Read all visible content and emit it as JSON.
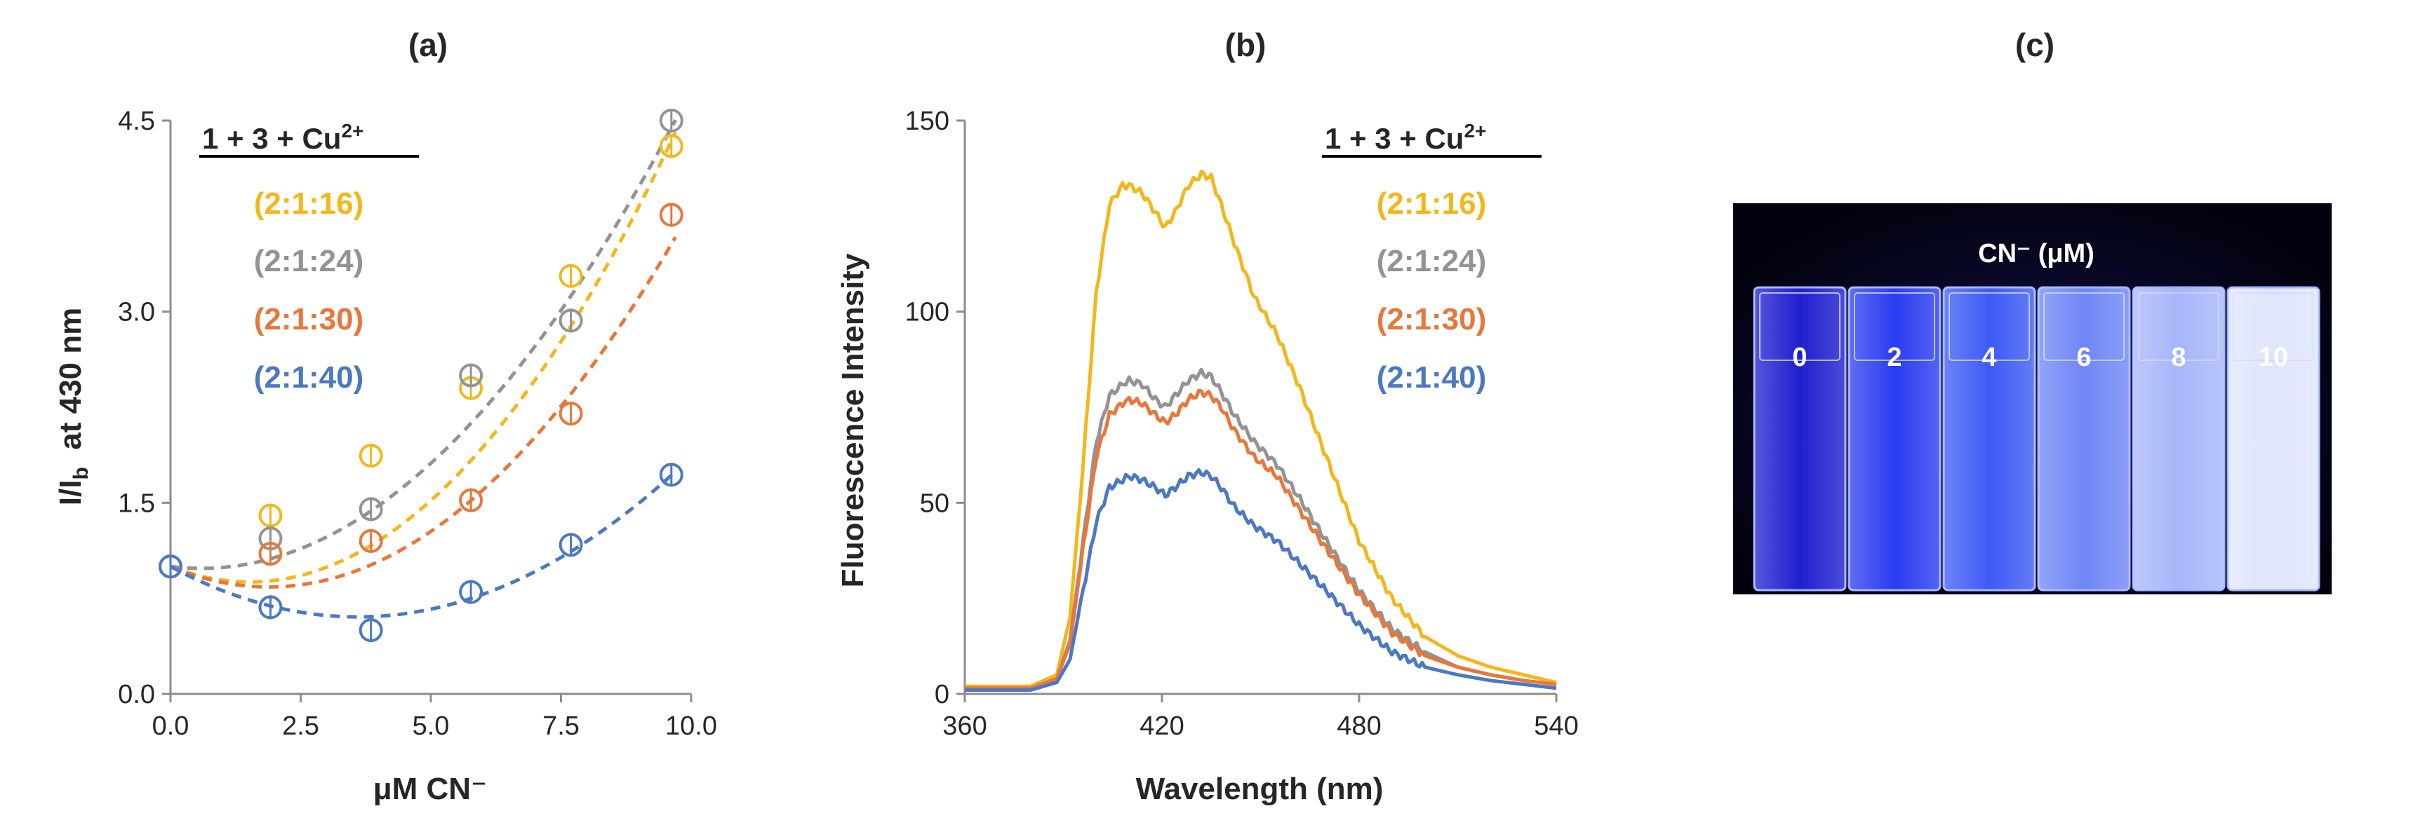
{
  "colors": {
    "yellow": "#F3B71B",
    "gray": "#939393",
    "orange": "#E7773C",
    "blue": "#4B79C1",
    "text": "#262626",
    "axis": "#8C8C8C",
    "photo_bg": "#02020F"
  },
  "chart_data": [
    {
      "id": "a",
      "type": "scatter",
      "title": "(a)",
      "xlabel": "μM CN⁻",
      "ylabel_main": "I/I",
      "ylabel_sub": "b",
      "ylabel_tail": "  at 430 nm",
      "xlim": [
        0,
        10
      ],
      "ylim": [
        0,
        4.5
      ],
      "xticks": [
        "0.0",
        "2.5",
        "5.0",
        "7.5",
        "10.0"
      ],
      "yticks": [
        "0.0",
        "1.5",
        "3.0",
        "4.5"
      ],
      "legend_title": "1 + 3 + Cu",
      "legend_title_sup": "2+",
      "fit": "quadratic, dashed",
      "series": [
        {
          "name": "(2:1:16)",
          "color": "#F3B71B",
          "x": [
            0,
            1.92,
            3.85,
            5.77,
            7.69,
            9.62
          ],
          "y": [
            1.0,
            1.4,
            1.87,
            2.4,
            3.28,
            4.3
          ],
          "fit": [
            1.0,
            -0.16,
            0.0527
          ]
        },
        {
          "name": "(2:1:24)",
          "color": "#939393",
          "x": [
            0,
            1.92,
            3.85,
            5.77,
            7.69,
            9.62
          ],
          "y": [
            1.0,
            1.22,
            1.45,
            2.5,
            2.93,
            4.5
          ],
          "fit": [
            1.0,
            -0.05,
            0.0424
          ]
        },
        {
          "name": "(2:1:30)",
          "color": "#E7773C",
          "x": [
            0,
            1.92,
            3.85,
            5.77,
            7.69,
            9.62
          ],
          "y": [
            1.0,
            1.1,
            1.2,
            1.52,
            2.2,
            3.76
          ],
          "fit": [
            1.0,
            -0.17,
            0.045
          ]
        },
        {
          "name": "(2:1:40)",
          "color": "#4B79C1",
          "x": [
            0,
            1.92,
            3.85,
            5.77,
            7.69,
            9.62
          ],
          "y": [
            1.0,
            0.68,
            0.5,
            0.8,
            1.17,
            1.72
          ],
          "fit": [
            1.0,
            -0.22,
            0.0306
          ]
        }
      ]
    },
    {
      "id": "b",
      "type": "line",
      "title": "(b)",
      "xlabel": "Wavelength (nm)",
      "ylabel": "Fluorescence Intensity",
      "xlim": [
        360,
        540
      ],
      "ylim": [
        0,
        150
      ],
      "xticks": [
        "360",
        "420",
        "480",
        "540"
      ],
      "yticks": [
        "0",
        "50",
        "100",
        "150"
      ],
      "legend_title": "1 + 3 + Cu",
      "legend_title_sup": "2+",
      "series": [
        {
          "name": "(2:1:16)",
          "color": "#F3B71B",
          "x": [
            360,
            370,
            380,
            388,
            392,
            396,
            400,
            404,
            408,
            410,
            414,
            418,
            421,
            424,
            428,
            432,
            435,
            438,
            442,
            448,
            455,
            462,
            470,
            480,
            490,
            500,
            510,
            520,
            530,
            540
          ],
          "y": [
            2,
            2,
            2,
            5,
            20,
            60,
            105,
            128,
            133,
            133,
            131,
            126,
            122,
            126,
            133,
            136,
            135,
            128,
            118,
            104,
            94,
            80,
            62,
            40,
            25,
            15,
            10,
            7,
            5,
            3
          ]
        },
        {
          "name": "(2:1:24)",
          "color": "#939393",
          "x": [
            360,
            370,
            380,
            388,
            392,
            396,
            400,
            404,
            408,
            410,
            414,
            418,
            421,
            424,
            428,
            432,
            435,
            438,
            442,
            448,
            455,
            462,
            470,
            480,
            490,
            500,
            510,
            520,
            530,
            540
          ],
          "y": [
            1.5,
            1.5,
            1.5,
            4,
            14,
            40,
            66,
            78,
            81,
            82,
            81,
            77,
            75,
            78,
            82,
            84,
            83,
            79,
            73,
            66,
            60,
            51,
            40,
            27,
            17,
            11,
            7,
            5,
            3.5,
            2.5
          ]
        },
        {
          "name": "(2:1:30)",
          "color": "#E7773C",
          "x": [
            360,
            370,
            380,
            388,
            392,
            396,
            400,
            404,
            408,
            410,
            414,
            418,
            421,
            424,
            428,
            432,
            435,
            438,
            442,
            448,
            455,
            462,
            470,
            480,
            490,
            500,
            510,
            520,
            530,
            540
          ],
          "y": [
            1.5,
            1.5,
            1.5,
            4,
            13,
            38,
            62,
            73,
            76,
            77,
            76,
            73,
            71,
            73,
            77,
            79,
            78,
            75,
            69,
            62,
            57,
            48,
            38,
            26,
            16,
            10,
            7,
            5,
            3.5,
            2.5
          ]
        },
        {
          "name": "(2:1:40)",
          "color": "#4B79C1",
          "x": [
            360,
            370,
            380,
            388,
            392,
            396,
            400,
            404,
            408,
            410,
            414,
            418,
            421,
            424,
            428,
            432,
            435,
            438,
            442,
            448,
            455,
            462,
            470,
            480,
            490,
            500,
            510,
            520,
            530,
            540
          ],
          "y": [
            1,
            1,
            1,
            3,
            9,
            27,
            45,
            54,
            56,
            57,
            56,
            54,
            52,
            54,
            57,
            58,
            57,
            54,
            49,
            44,
            40,
            34,
            27,
            18,
            11,
            7,
            5,
            3.5,
            2.5,
            1.5
          ]
        }
      ]
    }
  ],
  "panel_c": {
    "title": "(c)",
    "photo_label": "CN⁻ (μM)",
    "cuvettes": [
      "0",
      "2",
      "4",
      "6",
      "8",
      "10"
    ]
  }
}
